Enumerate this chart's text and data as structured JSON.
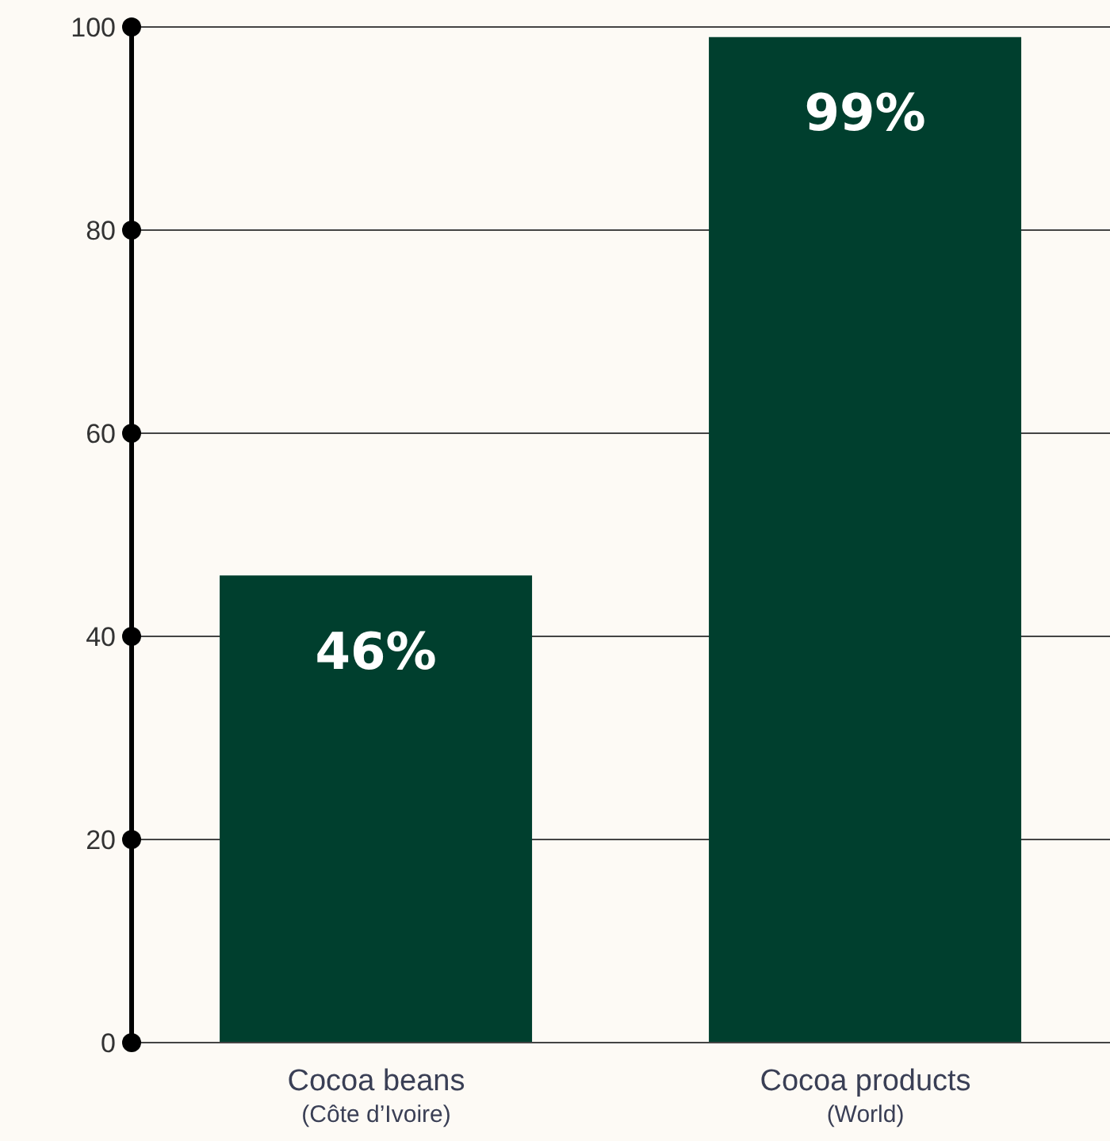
{
  "chart_data": {
    "type": "bar",
    "categories": [
      "Cocoa beans\n(Côte d’Ivoire)",
      "Cocoa products\n(World)"
    ],
    "values": [
      46,
      99
    ],
    "color": "#003f2e",
    "value_labels": [
      "46%",
      "99%"
    ],
    "ylim": [
      0,
      100
    ],
    "yticks": [
      0,
      20,
      40,
      60,
      80,
      100
    ],
    "grid": "y"
  }
}
